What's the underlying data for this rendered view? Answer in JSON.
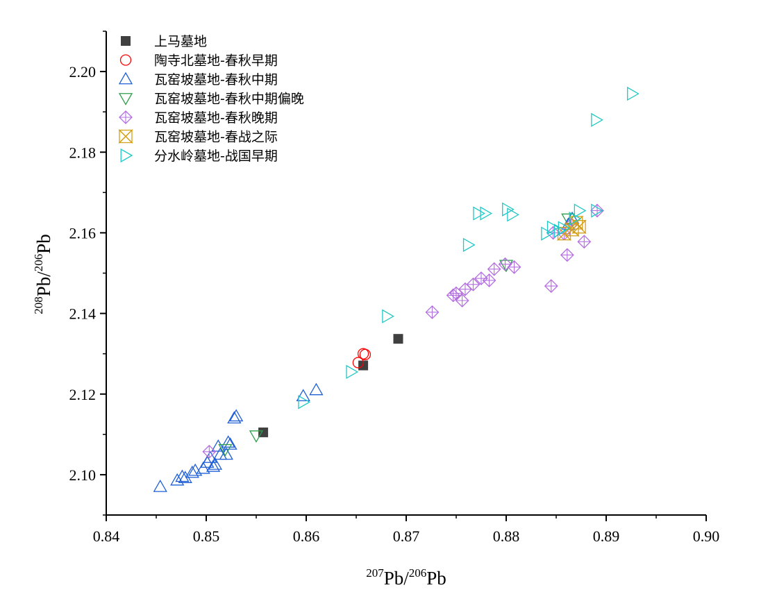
{
  "chart_data": {
    "type": "scatter",
    "xlabel": {
      "sup1": "207",
      "base1": "Pb/",
      "sup2": "206",
      "base2": "Pb"
    },
    "ylabel": {
      "sup1": "208",
      "base1": "Pb/",
      "sup2": "206",
      "base2": "Pb"
    },
    "xlim": [
      0.84,
      0.9
    ],
    "ylim": [
      2.09,
      2.21
    ],
    "xticks": [
      "0.84",
      "0.85",
      "0.86",
      "0.87",
      "0.88",
      "0.89",
      "0.90"
    ],
    "yticks": [
      "2.10",
      "2.12",
      "2.14",
      "2.16",
      "2.18",
      "2.20"
    ],
    "grid": false,
    "legend_position": "top-left",
    "series": [
      {
        "name": "上马墓地",
        "marker": "square-filled",
        "color": "#404040",
        "points": [
          [
            0.8557,
            2.1105
          ],
          [
            0.8657,
            2.1271
          ],
          [
            0.8692,
            2.1337
          ]
        ]
      },
      {
        "name": "陶寺北墓地-春秋早期",
        "marker": "circle",
        "color": "#ff0000",
        "points": [
          [
            0.8657,
            2.13
          ],
          [
            0.8652,
            2.1278
          ],
          [
            0.8659,
            2.1298
          ]
        ]
      },
      {
        "name": "瓦窑坡墓地-春秋中期",
        "marker": "triangle-up",
        "color": "#1f5fd6",
        "points": [
          [
            0.8454,
            2.097
          ],
          [
            0.8471,
            2.0986
          ],
          [
            0.8476,
            2.0995
          ],
          [
            0.8479,
            2.0992
          ],
          [
            0.8486,
            2.1005
          ],
          [
            0.8489,
            2.101
          ],
          [
            0.8497,
            2.1015
          ],
          [
            0.8501,
            2.103
          ],
          [
            0.8504,
            2.1042
          ],
          [
            0.8507,
            2.102
          ],
          [
            0.8509,
            2.1025
          ],
          [
            0.8512,
            2.107
          ],
          [
            0.8514,
            2.105
          ],
          [
            0.852,
            2.105
          ],
          [
            0.8522,
            2.108
          ],
          [
            0.8524,
            2.1075
          ],
          [
            0.8528,
            2.114
          ],
          [
            0.853,
            2.1145
          ],
          [
            0.8597,
            2.1195
          ],
          [
            0.861,
            2.121
          ],
          [
            0.8862,
            2.162
          ],
          [
            0.8866,
            2.1635
          ]
        ]
      },
      {
        "name": "瓦窑坡墓地-春秋中期偏晚",
        "marker": "triangle-down",
        "color": "#2e9e4a",
        "points": [
          [
            0.855,
            2.1097
          ],
          [
            0.8519,
            2.1063
          ],
          [
            0.88,
            2.152
          ],
          [
            0.8862,
            2.1635
          ]
        ]
      },
      {
        "name": "瓦窑坡墓地-春秋晚期",
        "marker": "diamond-cross",
        "color": "#b36ee0",
        "points": [
          [
            0.8503,
            2.1057
          ],
          [
            0.8726,
            2.1403
          ],
          [
            0.8747,
            2.1445
          ],
          [
            0.875,
            2.145
          ],
          [
            0.8756,
            2.1432
          ],
          [
            0.8759,
            2.146
          ],
          [
            0.8767,
            2.1472
          ],
          [
            0.8775,
            2.1487
          ],
          [
            0.8783,
            2.1482
          ],
          [
            0.8788,
            2.151
          ],
          [
            0.8799,
            2.1522
          ],
          [
            0.8808,
            2.1515
          ],
          [
            0.8845,
            2.1468
          ],
          [
            0.8847,
            2.16
          ],
          [
            0.8858,
            2.1598
          ],
          [
            0.8861,
            2.1545
          ],
          [
            0.8865,
            2.162
          ],
          [
            0.8878,
            2.1578
          ],
          [
            0.8891,
            2.1655
          ]
        ]
      },
      {
        "name": "瓦窑坡墓地-春战之际",
        "marker": "hourglass-x",
        "color": "#d4a017",
        "points": [
          [
            0.887,
            2.1625
          ],
          [
            0.8873,
            2.1615
          ],
          [
            0.8858,
            2.1598
          ],
          [
            0.8866,
            2.1608
          ]
        ]
      },
      {
        "name": "分水岭墓地-战国早期",
        "marker": "triangle-right",
        "color": "#1fc8c8",
        "points": [
          [
            0.8926,
            2.1945
          ],
          [
            0.889,
            2.188
          ],
          [
            0.889,
            2.1655
          ],
          [
            0.8873,
            2.1655
          ],
          [
            0.8801,
            2.1658
          ],
          [
            0.8806,
            2.1645
          ],
          [
            0.8772,
            2.1648
          ],
          [
            0.8779,
            2.1648
          ],
          [
            0.8762,
            2.157
          ],
          [
            0.8681,
            2.1393
          ],
          [
            0.8645,
            2.1255
          ],
          [
            0.8597,
            2.118
          ],
          [
            0.884,
            2.1598
          ],
          [
            0.8846,
            2.1613
          ],
          [
            0.8853,
            2.1605
          ],
          [
            0.8857,
            2.1612
          ],
          [
            0.8868,
            2.1635
          ]
        ]
      }
    ]
  }
}
